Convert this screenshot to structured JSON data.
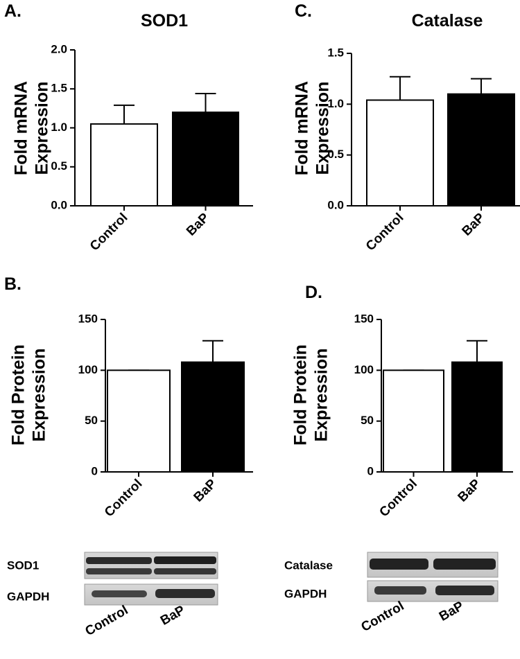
{
  "chart_data": [
    {
      "type": "bar",
      "label": "A.",
      "title": "SOD1",
      "ylabel": [
        "Fold mRNA",
        "Expression"
      ],
      "categories": [
        "Control",
        "BaP"
      ],
      "values": [
        1.05,
        1.2
      ],
      "errors": [
        0.24,
        0.24
      ],
      "colors": [
        "#ffffff",
        "#000000"
      ],
      "ylim": [
        0,
        2
      ],
      "yticks": [
        {
          "value": 0,
          "label": "0.0"
        },
        0.5,
        {
          "value": 1,
          "label": "1.0"
        },
        1.5,
        {
          "value": 2,
          "label": "2.0"
        }
      ]
    },
    {
      "type": "bar",
      "label": "C.",
      "title": "Catalase",
      "ylabel": [
        "Fold mRNA",
        "Expression"
      ],
      "categories": [
        "Control",
        "BaP"
      ],
      "values": [
        1.04,
        1.1
      ],
      "errors": [
        0.23,
        0.15
      ],
      "colors": [
        "#ffffff",
        "#000000"
      ],
      "ylim": [
        0,
        1.5
      ],
      "yticks": [
        {
          "value": 0,
          "label": "0.0"
        },
        0.5,
        {
          "value": 1,
          "label": "1.0"
        },
        1.5
      ]
    },
    {
      "type": "bar",
      "label": "B.",
      "ylabel": [
        "Fold Protein",
        "Expression"
      ],
      "categories": [
        "Control",
        "BaP"
      ],
      "values": [
        100,
        108
      ],
      "errors": [
        0,
        21
      ],
      "colors": [
        "#ffffff",
        "#000000"
      ],
      "ylim": [
        0,
        150
      ],
      "yticks": [
        0,
        50,
        100,
        150
      ]
    },
    {
      "type": "bar",
      "label": "D.",
      "ylabel": [
        "Fold Protein",
        "Expression"
      ],
      "categories": [
        "Control",
        "BaP"
      ],
      "values": [
        100,
        108
      ],
      "errors": [
        0,
        21
      ],
      "colors": [
        "#ffffff",
        "#000000"
      ],
      "ylim": [
        0,
        150
      ],
      "yticks": [
        0,
        50,
        100,
        150
      ]
    }
  ],
  "blots": [
    {
      "bands": [
        "SOD1",
        "GAPDH"
      ],
      "lanes": [
        "Control",
        "BaP"
      ]
    },
    {
      "bands": [
        "Catalase",
        "GAPDH"
      ],
      "lanes": [
        "Control",
        "BaP"
      ]
    }
  ]
}
